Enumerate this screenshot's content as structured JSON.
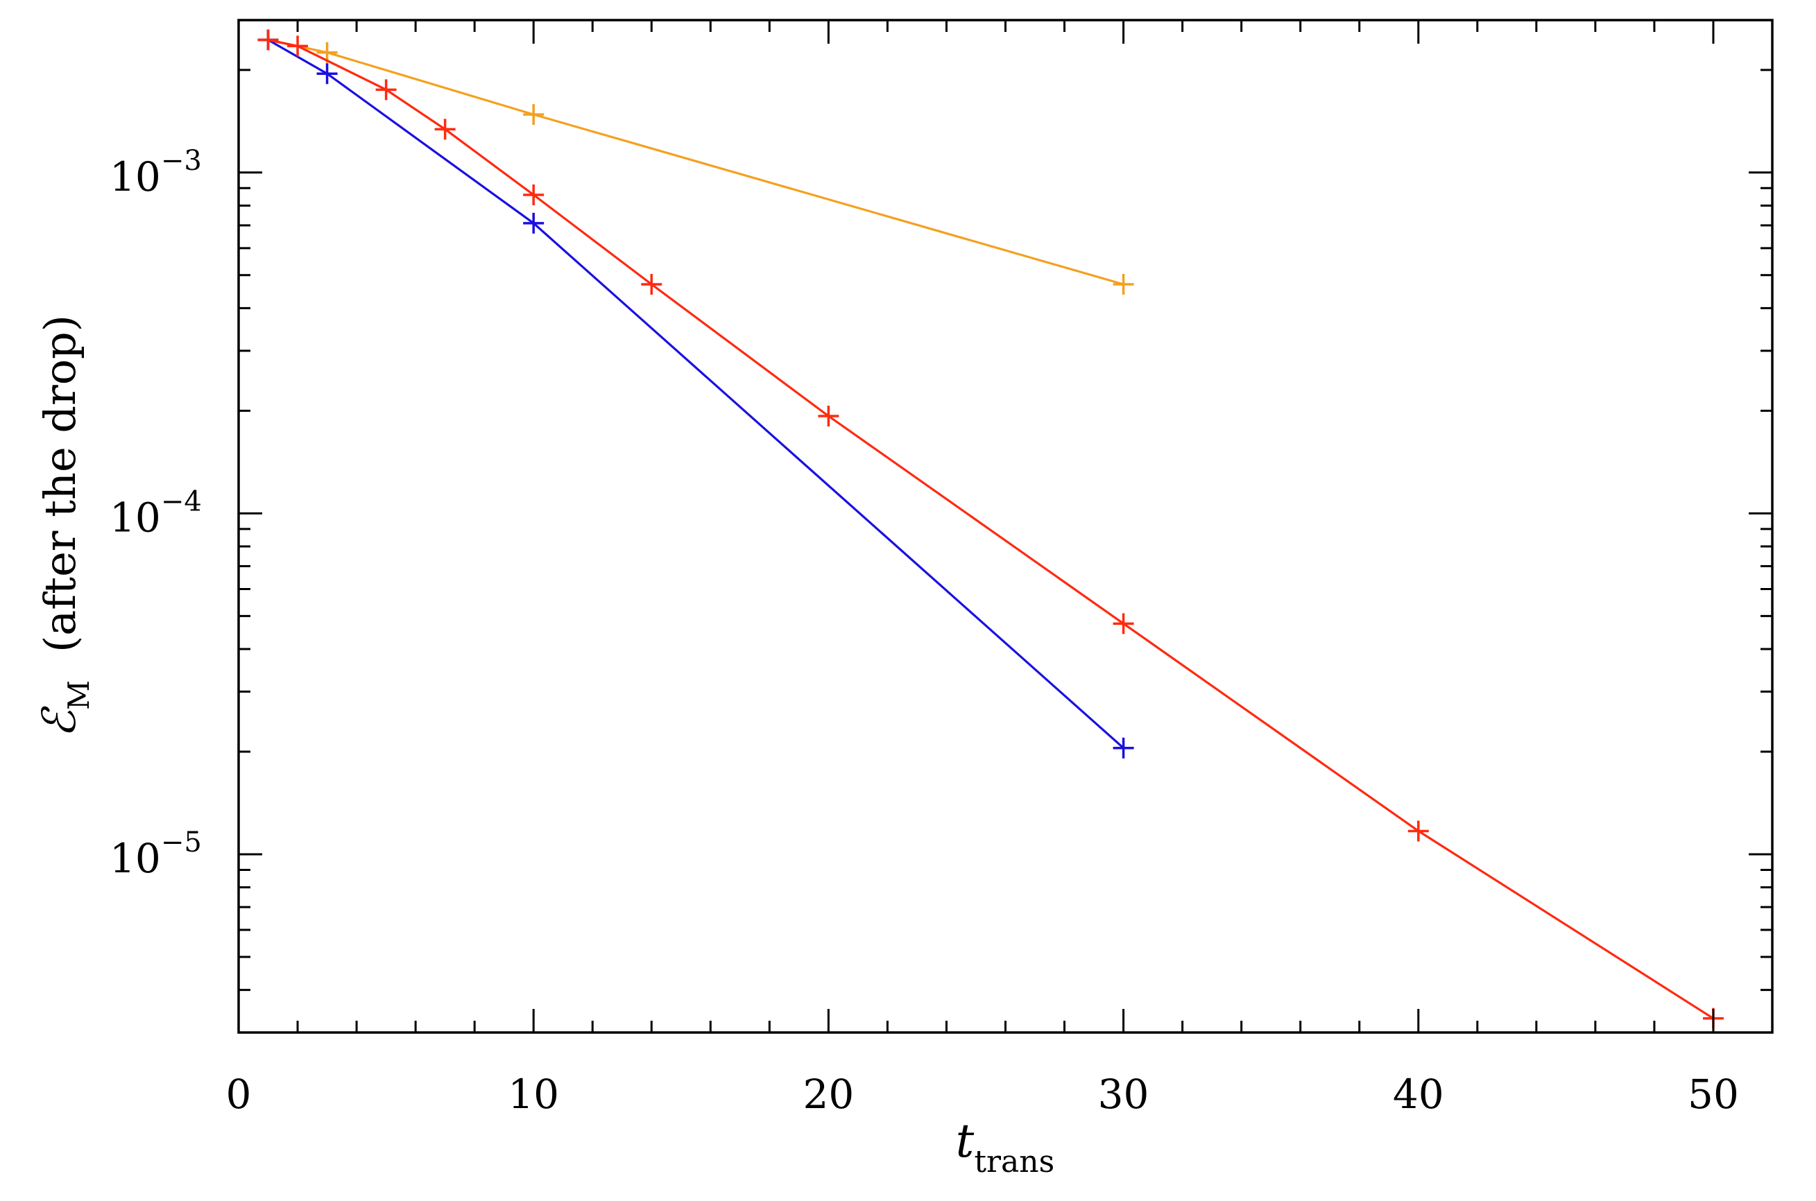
{
  "chart_data": {
    "type": "line",
    "xlabel": {
      "main": "t",
      "sub": "trans"
    },
    "ylabel": {
      "main": "ℰ",
      "sub": "M",
      "rest": "(after the drop)"
    },
    "xlim": [
      0,
      52
    ],
    "ylim": [
      3e-06,
      0.0028
    ],
    "yscale": "log",
    "xticks": [
      0,
      10,
      20,
      30,
      40,
      50
    ],
    "xtick_labels": [
      "0",
      "10",
      "20",
      "30",
      "40",
      "50"
    ],
    "yticks": [
      0.001,
      0.0001,
      1e-05
    ],
    "ytick_labels": [
      {
        "base": "10",
        "exp": "−3"
      },
      {
        "base": "10",
        "exp": "−4"
      },
      {
        "base": "10",
        "exp": "−5"
      }
    ],
    "grid": false,
    "marker": "plus",
    "series": [
      {
        "color": "#f5a020",
        "x": [
          1,
          3,
          10,
          30
        ],
        "y": [
          0.00245,
          0.00225,
          0.00148,
          0.00047
        ]
      },
      {
        "color": "#1a10e0",
        "x": [
          1,
          3,
          10,
          30
        ],
        "y": [
          0.00245,
          0.00195,
          0.00071,
          2.05e-05
        ]
      },
      {
        "color": "#ff2a10",
        "x": [
          1,
          2,
          5,
          7,
          10,
          14,
          20,
          30,
          40,
          50
        ],
        "y": [
          0.00245,
          0.00235,
          0.00175,
          0.00134,
          0.00086,
          0.00047,
          0.000193,
          4.75e-05,
          1.17e-05,
          3.3e-06
        ]
      }
    ]
  }
}
